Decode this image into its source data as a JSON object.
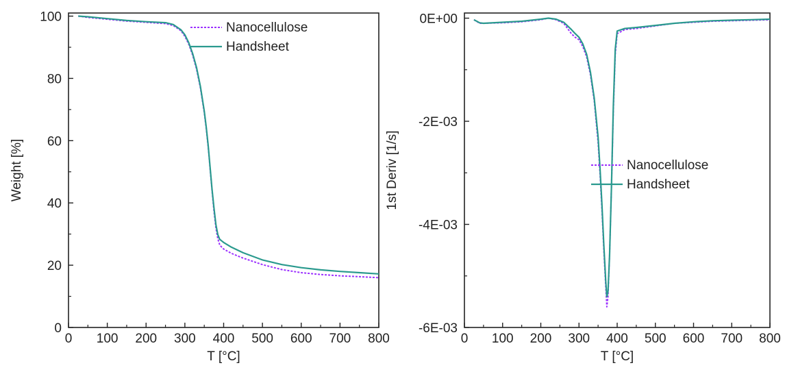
{
  "chart_data": [
    {
      "type": "line",
      "xlabel": "T [°C]",
      "ylabel": "Weight [%]",
      "xlim": [
        0,
        800
      ],
      "ylim": [
        0,
        101
      ],
      "xticks": [
        0,
        100,
        200,
        300,
        400,
        500,
        600,
        700,
        800
      ],
      "xtick_labels": [
        "0",
        "100",
        "200",
        "300",
        "400",
        "500",
        "600",
        "700",
        "800"
      ],
      "yticks": [
        0,
        20,
        40,
        60,
        80,
        100
      ],
      "ytick_labels": [
        "0",
        "20",
        "40",
        "60",
        "80",
        "100"
      ],
      "grid": false,
      "legend": "top-right",
      "series": [
        {
          "name": "Nanocellulose",
          "color": "#9b30ff",
          "style": "dotted",
          "x": [
            25,
            50,
            100,
            150,
            200,
            250,
            270,
            290,
            300,
            310,
            320,
            330,
            340,
            350,
            355,
            360,
            365,
            370,
            375,
            380,
            385,
            390,
            395,
            400,
            420,
            450,
            500,
            550,
            600,
            650,
            700,
            750,
            800
          ],
          "y": [
            100,
            99.6,
            99.0,
            98.4,
            98.0,
            97.6,
            97.0,
            95.3,
            93.5,
            91.0,
            87.5,
            83.0,
            77.0,
            69.0,
            64.0,
            58.0,
            51.0,
            44.0,
            37.5,
            32.0,
            28.5,
            26.5,
            25.8,
            25.2,
            23.8,
            22.3,
            20.2,
            18.6,
            17.6,
            17.0,
            16.6,
            16.3,
            16.0
          ]
        },
        {
          "name": "Handsheet",
          "color": "#2a9a8e",
          "style": "solid",
          "x": [
            25,
            50,
            100,
            150,
            200,
            250,
            270,
            290,
            300,
            310,
            320,
            330,
            340,
            350,
            355,
            360,
            365,
            370,
            375,
            380,
            385,
            390,
            395,
            400,
            420,
            450,
            500,
            550,
            600,
            650,
            700,
            750,
            800
          ],
          "y": [
            100,
            99.8,
            99.2,
            98.6,
            98.2,
            97.9,
            97.3,
            95.6,
            94.0,
            91.5,
            88.0,
            83.5,
            77.5,
            69.5,
            64.5,
            58.5,
            51.5,
            44.5,
            38.5,
            33.0,
            29.8,
            28.3,
            27.8,
            27.3,
            25.8,
            24.0,
            21.7,
            20.2,
            19.2,
            18.5,
            18.0,
            17.6,
            17.2
          ]
        }
      ]
    },
    {
      "type": "line",
      "xlabel": "T [°C]",
      "ylabel": "1st Deriv [1/s]",
      "xlim": [
        0,
        800
      ],
      "ylim": [
        -0.006,
        0.0001
      ],
      "xticks": [
        0,
        100,
        200,
        300,
        400,
        500,
        600,
        700,
        800
      ],
      "xtick_labels": [
        "0",
        "100",
        "200",
        "300",
        "400",
        "500",
        "600",
        "700",
        "800"
      ],
      "yticks": [
        0,
        -0.002,
        -0.004,
        -0.006
      ],
      "ytick_labels": [
        "0E+00",
        "-2E-03",
        "-4E-03",
        "-6E-03"
      ],
      "grid": false,
      "legend": "center-right",
      "series": [
        {
          "name": "Nanocellulose",
          "color": "#9b30ff",
          "style": "dotted",
          "x": [
            25,
            40,
            50,
            100,
            150,
            200,
            220,
            240,
            260,
            280,
            290,
            300,
            310,
            320,
            330,
            340,
            350,
            355,
            360,
            365,
            370,
            373,
            376,
            380,
            385,
            390,
            395,
            400,
            420,
            450,
            500,
            550,
            600,
            650,
            700,
            750,
            800
          ],
          "y": [
            -3e-05,
            -0.0001,
            -0.0001,
            -9e-05,
            -7e-05,
            -3e-05,
            0.0,
            -3e-05,
            -0.0001,
            -0.0003,
            -0.00037,
            -0.00042,
            -0.00055,
            -0.00075,
            -0.0011,
            -0.0016,
            -0.0024,
            -0.003,
            -0.0037,
            -0.0045,
            -0.0052,
            -0.0056,
            -0.0054,
            -0.0046,
            -0.0033,
            -0.0018,
            -0.0007,
            -0.0003,
            -0.00022,
            -0.0002,
            -0.00015,
            -0.0001,
            -8e-05,
            -6e-05,
            -5e-05,
            -4e-05,
            -3e-05
          ]
        },
        {
          "name": "Handsheet",
          "color": "#2a9a8e",
          "style": "solid",
          "x": [
            25,
            40,
            50,
            100,
            150,
            200,
            220,
            240,
            260,
            280,
            290,
            300,
            310,
            320,
            330,
            340,
            350,
            355,
            360,
            365,
            370,
            373,
            376,
            380,
            385,
            390,
            395,
            400,
            420,
            450,
            500,
            550,
            600,
            650,
            700,
            750,
            800
          ],
          "y": [
            -3e-05,
            -9e-05,
            -0.0001,
            -8e-05,
            -6e-05,
            -2e-05,
            0.0,
            -2e-05,
            -8e-05,
            -0.00022,
            -0.0003,
            -0.00037,
            -0.0005,
            -0.0007,
            -0.00105,
            -0.00155,
            -0.0023,
            -0.0029,
            -0.0036,
            -0.0044,
            -0.0051,
            -0.0054,
            -0.0053,
            -0.0046,
            -0.0033,
            -0.0017,
            -0.0006,
            -0.00025,
            -0.0002,
            -0.00018,
            -0.00014,
            -0.0001,
            -7e-05,
            -5e-05,
            -4e-05,
            -3e-05,
            -2e-05
          ]
        }
      ]
    }
  ]
}
